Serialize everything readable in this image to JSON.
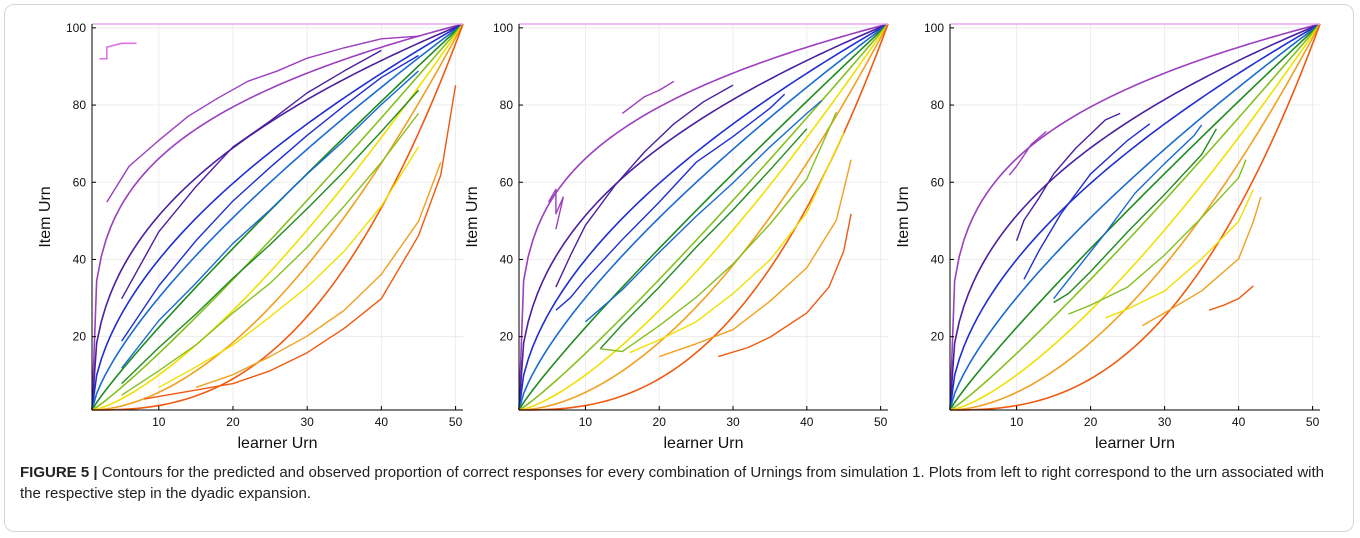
{
  "figure": {
    "label": "FIGURE 5 |",
    "caption": "Contours for the predicted and observed proportion of correct responses for every combination of Urnings from simulation 1. Plots from left to right correspond to the urn associated with the respective step in the dyadic expansion."
  },
  "colors": {
    "levels": [
      "#9b3fbf",
      "#4a1fa0",
      "#1f2ed0",
      "#1a6ad0",
      "#1f8a1f",
      "#86c020",
      "#f0e000",
      "#f0a020",
      "#f05a10"
    ],
    "top_line": "#e8a8f0"
  },
  "chart_data": [
    {
      "type": "line",
      "panel": "left",
      "xlabel": "learner Urn",
      "ylabel": "Item Urn",
      "xlim": [
        1,
        51
      ],
      "ylim": [
        1,
        101
      ],
      "xticks": [
        "10",
        "20",
        "30",
        "40",
        "50"
      ],
      "yticks": [
        "20",
        "40",
        "60",
        "80",
        "100"
      ],
      "grid": true,
      "predicted_contour_exponents": [
        0.25,
        0.4,
        0.55,
        0.72,
        0.9,
        1.12,
        1.4,
        1.8,
        2.6
      ],
      "observed": [
        {
          "level": 0,
          "x": [
            3,
            6,
            10,
            14,
            18,
            22,
            26,
            30,
            35,
            40,
            45
          ],
          "y": [
            55,
            64,
            71,
            77,
            82,
            86,
            89,
            92,
            95,
            97,
            98
          ]
        },
        {
          "level": 1,
          "x": [
            5,
            10,
            15,
            20,
            25,
            30,
            35,
            40
          ],
          "y": [
            30,
            47,
            59,
            69,
            76,
            83,
            89,
            94
          ]
        },
        {
          "level": 2,
          "x": [
            5,
            10,
            15,
            20,
            25,
            30,
            35,
            40,
            45
          ],
          "y": [
            19,
            33,
            45,
            55,
            64,
            72,
            80,
            87,
            93
          ]
        },
        {
          "level": 3,
          "x": [
            5,
            10,
            15,
            20,
            25,
            30,
            35,
            40,
            45
          ],
          "y": [
            12,
            24,
            34,
            44,
            53,
            62,
            71,
            80,
            89
          ]
        },
        {
          "level": 4,
          "x": [
            5,
            10,
            15,
            20,
            25,
            30,
            35,
            40,
            45
          ],
          "y": [
            8,
            17,
            26,
            35,
            44,
            53,
            63,
            73,
            84
          ]
        },
        {
          "level": 5,
          "x": [
            5,
            10,
            15,
            20,
            25,
            30,
            35,
            40,
            45
          ],
          "y": [
            5,
            11,
            18,
            26,
            34,
            43,
            54,
            65,
            78
          ]
        },
        {
          "level": 6,
          "x": [
            10,
            15,
            20,
            25,
            30,
            35,
            40,
            45
          ],
          "y": [
            7,
            12,
            18,
            25,
            33,
            42,
            54,
            69
          ]
        },
        {
          "level": 7,
          "x": [
            15,
            20,
            25,
            30,
            35,
            40,
            45,
            48
          ],
          "y": [
            7,
            10,
            15,
            20,
            27,
            36,
            50,
            65
          ]
        },
        {
          "level": 8,
          "x": [
            8,
            15,
            20,
            25,
            30,
            35,
            40,
            45,
            48,
            50
          ],
          "y": [
            4,
            6,
            8,
            11,
            16,
            22,
            30,
            46,
            62,
            85
          ]
        }
      ],
      "annotations": [
        {
          "level": 0,
          "x": [
            2,
            3,
            3,
            5,
            7
          ],
          "y": [
            92,
            92,
            95,
            96,
            96
          ]
        }
      ]
    },
    {
      "type": "line",
      "panel": "middle",
      "xlabel": "learner Urn",
      "ylabel": "Item Urn",
      "xlim": [
        1,
        51
      ],
      "ylim": [
        1,
        101
      ],
      "xticks": [
        "10",
        "20",
        "30",
        "40",
        "50"
      ],
      "yticks": [
        "20",
        "40",
        "60",
        "80",
        "100"
      ],
      "grid": true,
      "predicted_contour_exponents": [
        0.25,
        0.4,
        0.55,
        0.72,
        0.9,
        1.12,
        1.4,
        1.8,
        2.6
      ],
      "observed": [
        {
          "level": 0,
          "x": [
            5,
            6,
            6,
            7,
            6
          ],
          "y": [
            55,
            58,
            52,
            56,
            48
          ]
        },
        {
          "level": 0,
          "x": [
            15,
            18,
            20,
            22
          ],
          "y": [
            78,
            82,
            84,
            86
          ]
        },
        {
          "level": 1,
          "x": [
            6,
            8,
            10,
            14,
            18,
            22,
            26,
            30
          ],
          "y": [
            33,
            41,
            49,
            59,
            68,
            75,
            81,
            85
          ]
        },
        {
          "level": 2,
          "x": [
            6,
            8,
            10,
            15,
            20,
            25,
            30,
            35,
            37
          ],
          "y": [
            27,
            30,
            35,
            45,
            55,
            65,
            72,
            79,
            83
          ]
        },
        {
          "level": 3,
          "x": [
            10,
            15,
            20,
            25,
            30,
            35,
            40,
            42
          ],
          "y": [
            24,
            32,
            42,
            51,
            60,
            69,
            78,
            81
          ]
        },
        {
          "level": 4,
          "x": [
            12,
            15,
            20,
            25,
            30,
            35,
            40
          ],
          "y": [
            17,
            23,
            33,
            43,
            53,
            63,
            74
          ]
        },
        {
          "level": 5,
          "x": [
            12,
            15,
            20,
            25,
            30,
            35,
            40,
            44
          ],
          "y": [
            17,
            16,
            23,
            30,
            39,
            49,
            61,
            78
          ]
        },
        {
          "level": 6,
          "x": [
            16,
            20,
            25,
            30,
            35,
            40,
            45
          ],
          "y": [
            16,
            19,
            24,
            31,
            40,
            52,
            73
          ]
        },
        {
          "level": 7,
          "x": [
            20,
            25,
            30,
            35,
            40,
            44,
            46
          ],
          "y": [
            15,
            18,
            22,
            29,
            38,
            50,
            66
          ]
        },
        {
          "level": 8,
          "x": [
            28,
            32,
            35,
            40,
            43,
            45,
            46
          ],
          "y": [
            15,
            17,
            20,
            26,
            33,
            42,
            52
          ]
        }
      ],
      "annotations": []
    },
    {
      "type": "line",
      "panel": "right",
      "xlabel": "learner Urn",
      "ylabel": "Item Urn",
      "xlim": [
        1,
        51
      ],
      "ylim": [
        1,
        101
      ],
      "xticks": [
        "10",
        "20",
        "30",
        "40",
        "50"
      ],
      "yticks": [
        "20",
        "40",
        "60",
        "80",
        "100"
      ],
      "grid": true,
      "predicted_contour_exponents": [
        0.25,
        0.4,
        0.55,
        0.72,
        0.9,
        1.12,
        1.4,
        1.8,
        2.6
      ],
      "observed": [
        {
          "level": 0,
          "x": [
            9,
            10,
            12,
            14
          ],
          "y": [
            62,
            64,
            70,
            73
          ]
        },
        {
          "level": 1,
          "x": [
            10,
            11,
            13,
            15,
            18,
            22,
            24
          ],
          "y": [
            45,
            50,
            56,
            62,
            69,
            76,
            78
          ]
        },
        {
          "level": 2,
          "x": [
            11,
            13,
            16,
            20,
            25,
            28
          ],
          "y": [
            35,
            42,
            52,
            62,
            71,
            75
          ]
        },
        {
          "level": 3,
          "x": [
            15,
            18,
            22,
            26,
            30,
            34,
            35
          ],
          "y": [
            30,
            37,
            47,
            57,
            65,
            72,
            75
          ]
        },
        {
          "level": 4,
          "x": [
            15,
            17,
            20,
            25,
            30,
            35,
            37
          ],
          "y": [
            29,
            31,
            37,
            47,
            57,
            67,
            74
          ]
        },
        {
          "level": 5,
          "x": [
            17,
            20,
            25,
            30,
            35,
            40,
            41
          ],
          "y": [
            26,
            28,
            33,
            41,
            51,
            61,
            66
          ]
        },
        {
          "level": 6,
          "x": [
            22,
            25,
            30,
            35,
            40,
            42
          ],
          "y": [
            25,
            27,
            32,
            40,
            50,
            58
          ]
        },
        {
          "level": 7,
          "x": [
            27,
            30,
            35,
            40,
            42,
            43
          ],
          "y": [
            23,
            26,
            32,
            40,
            50,
            56
          ]
        },
        {
          "level": 8,
          "x": [
            36,
            38,
            40,
            42
          ],
          "y": [
            27,
            28,
            30,
            33
          ]
        }
      ],
      "annotations": []
    }
  ]
}
